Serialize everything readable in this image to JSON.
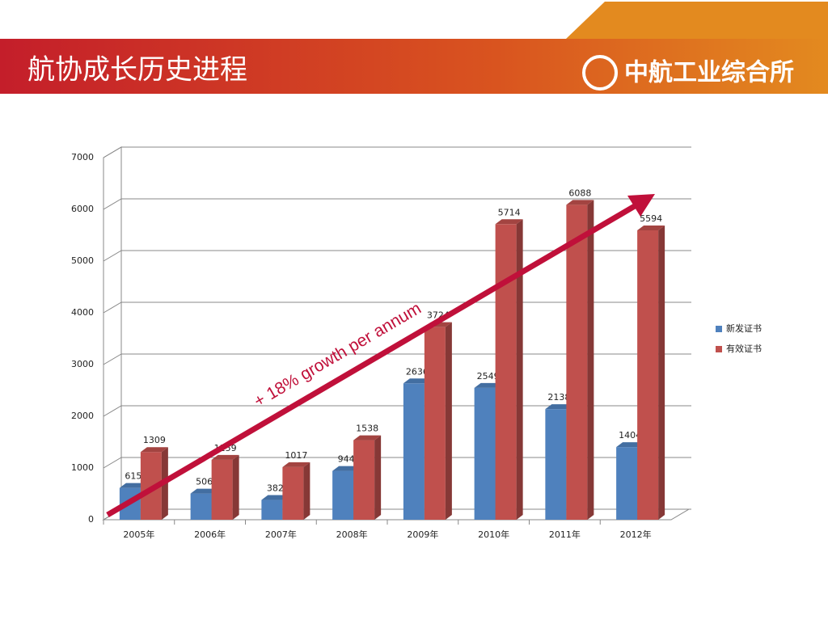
{
  "header": {
    "title": "航协成长历史进程",
    "logo": "中航工业综合所"
  },
  "chart_data": {
    "type": "bar3d",
    "categories": [
      "2005年",
      "2006年",
      "2007年",
      "2008年",
      "2009年",
      "2010年",
      "2011年",
      "2012年"
    ],
    "series": [
      {
        "name": "新发证书",
        "color": "#4f81bd",
        "values": [
          615,
          506,
          382,
          944,
          2636,
          2549,
          2138,
          1404
        ]
      },
      {
        "name": "有效证书",
        "color": "#c0504d",
        "values": [
          1309,
          1159,
          1017,
          1538,
          3724,
          5714,
          6088,
          5594
        ]
      }
    ],
    "ylim": [
      0,
      7000
    ],
    "yticks": [
      0,
      1000,
      2000,
      3000,
      4000,
      5000,
      6000,
      7000
    ],
    "grid": true,
    "legend": "right",
    "annotation": "+ 18%  growth per annum"
  }
}
